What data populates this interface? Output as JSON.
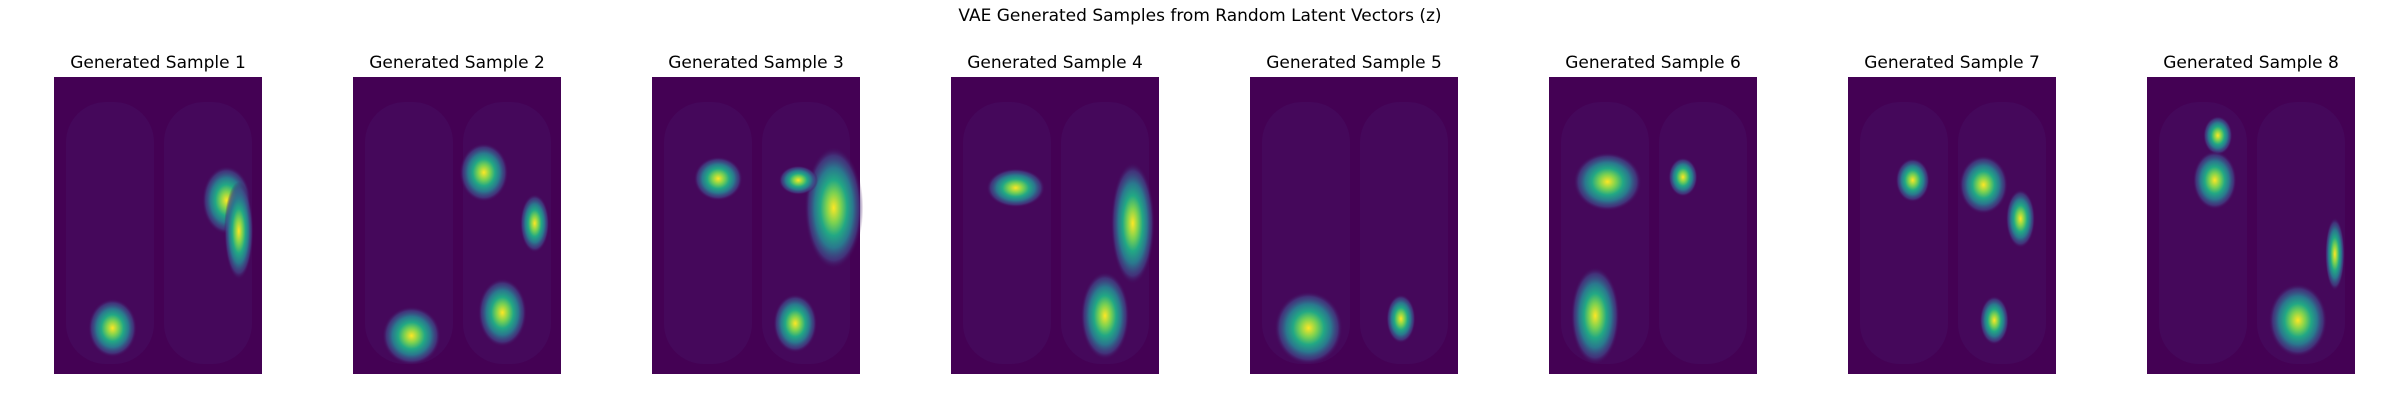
{
  "title": "VAE Generated Samples from Random Latent Vectors (z)",
  "panels": [
    {
      "title": "Generated Sample 1"
    },
    {
      "title": "Generated Sample 2"
    },
    {
      "title": "Generated Sample 3"
    },
    {
      "title": "Generated Sample 4"
    },
    {
      "title": "Generated Sample 5"
    },
    {
      "title": "Generated Sample 6"
    },
    {
      "title": "Generated Sample 7"
    },
    {
      "title": "Generated Sample 8"
    }
  ]
}
